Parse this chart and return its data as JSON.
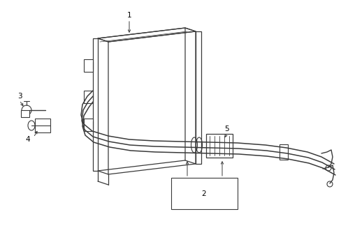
{
  "background_color": "#ffffff",
  "line_color": "#3a3a3a",
  "label_color": "#000000",
  "figsize": [
    4.89,
    3.6
  ],
  "dpi": 100
}
